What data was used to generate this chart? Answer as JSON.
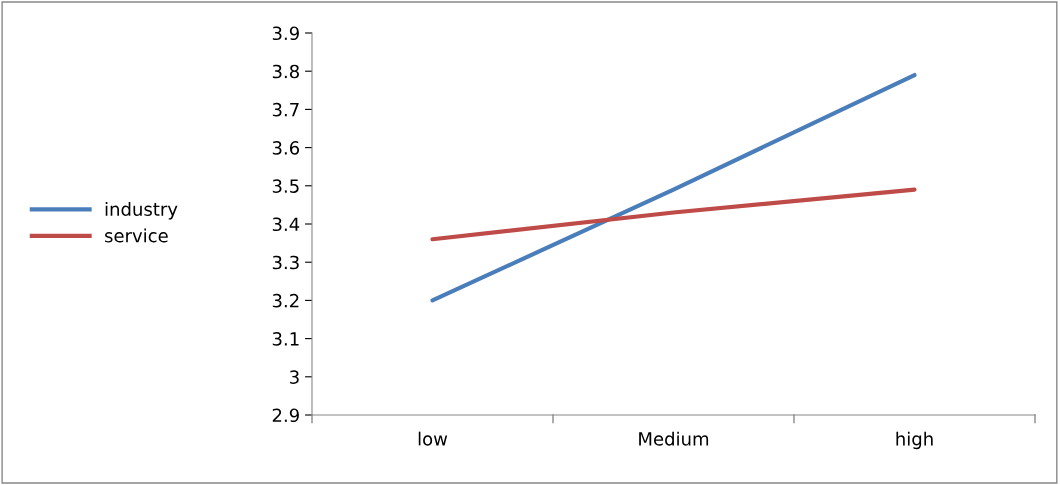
{
  "chart_data": {
    "type": "line",
    "categories": [
      "low",
      "Medium",
      "high"
    ],
    "series": [
      {
        "name": "industry",
        "color": "#4a7ebb",
        "values": [
          3.2,
          3.49,
          3.79
        ]
      },
      {
        "name": "service",
        "color": "#be4b48",
        "values": [
          3.36,
          3.43,
          3.49
        ]
      }
    ],
    "ylim": [
      2.9,
      3.9
    ],
    "yticks": [
      2.9,
      3,
      3.1,
      3.2,
      3.3,
      3.4,
      3.5,
      3.6,
      3.7,
      3.8,
      3.9
    ],
    "grid": false,
    "legend": "left",
    "marker": "none",
    "line_style": "solid"
  }
}
